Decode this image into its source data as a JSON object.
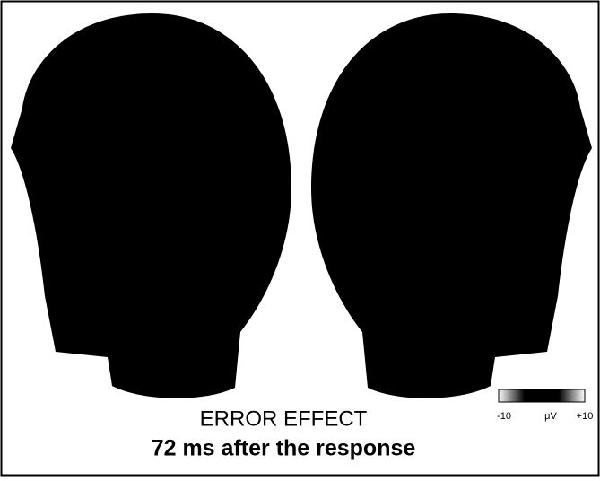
{
  "figure": {
    "title": "ERROR EFFECT",
    "subtitle": "72 ms after the response",
    "colorbar": {
      "min_label": "-10",
      "unit_label": "μV",
      "max_label": "+10"
    }
  }
}
